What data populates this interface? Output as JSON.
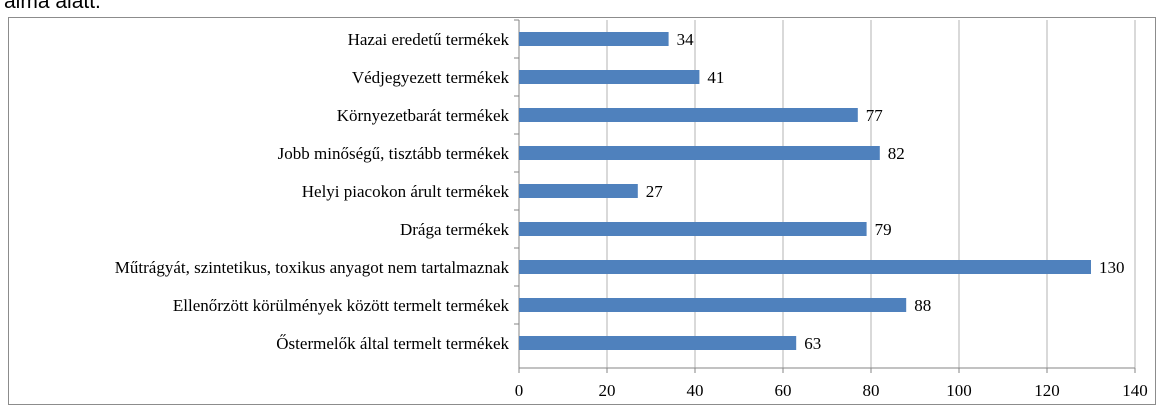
{
  "page": {
    "top_fragment": "alma alatt."
  },
  "colors": {
    "bar": "#4f81bd",
    "gridline": "#b3b3b3",
    "axis": "#868686",
    "frame": "#8c8c8c"
  },
  "chart_data": {
    "type": "bar",
    "orientation": "horizontal",
    "title": "",
    "xlabel": "",
    "ylabel": "",
    "xlim": [
      0,
      140
    ],
    "xticks": [
      0,
      20,
      40,
      60,
      80,
      100,
      120,
      140
    ],
    "grid": "vertical",
    "legend": "none",
    "categories": [
      "Hazai eredetű termékek",
      "Védjegyezett termékek",
      "Környezetbarát termékek",
      "Jobb minőségű, tisztább termékek",
      "Helyi piacokon árult termékek",
      "Drága termékek",
      "Műtrágyát, szintetikus, toxikus anyagot nem tartalmaznak",
      "Ellenőrzött körülmények között termelt termékek",
      "Őstermelők által termelt termékek"
    ],
    "values": [
      34,
      41,
      77,
      82,
      27,
      79,
      130,
      88,
      63
    ],
    "data_labels": true
  }
}
